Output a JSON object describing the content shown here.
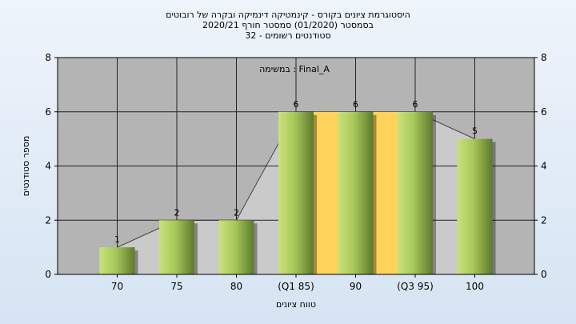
{
  "title": {
    "line1": "היסטוגרמת ציונים בקורס - קינמטיקה דינמיקה ובקרה של רובוטים",
    "line2": "בסמסטר  (01/2020)  סמסטר חורף  2020/21",
    "line3": "סטודנטים רשומים - 32"
  },
  "chart_data": {
    "type": "bar",
    "annotation": "במשימה : Final_A",
    "categories": [
      "70",
      "75",
      "80",
      "(Q1 85)",
      "90",
      "(Q3 95)",
      "100"
    ],
    "values": [
      1,
      2,
      2,
      6,
      6,
      6,
      5
    ],
    "xlabel": "טווח ציונים",
    "ylabel": "מספר סטודנטים",
    "ylim": [
      0,
      8
    ],
    "yticks": [
      0,
      2,
      4,
      6,
      8
    ],
    "grid": true,
    "colors": {
      "bar_light": "#c9e27c",
      "bar_dark": "#5c7a2c",
      "quartile_band": "#ffd25a",
      "plot_bg": "#b4b4b4",
      "trend_fill": "#cacaca"
    }
  }
}
